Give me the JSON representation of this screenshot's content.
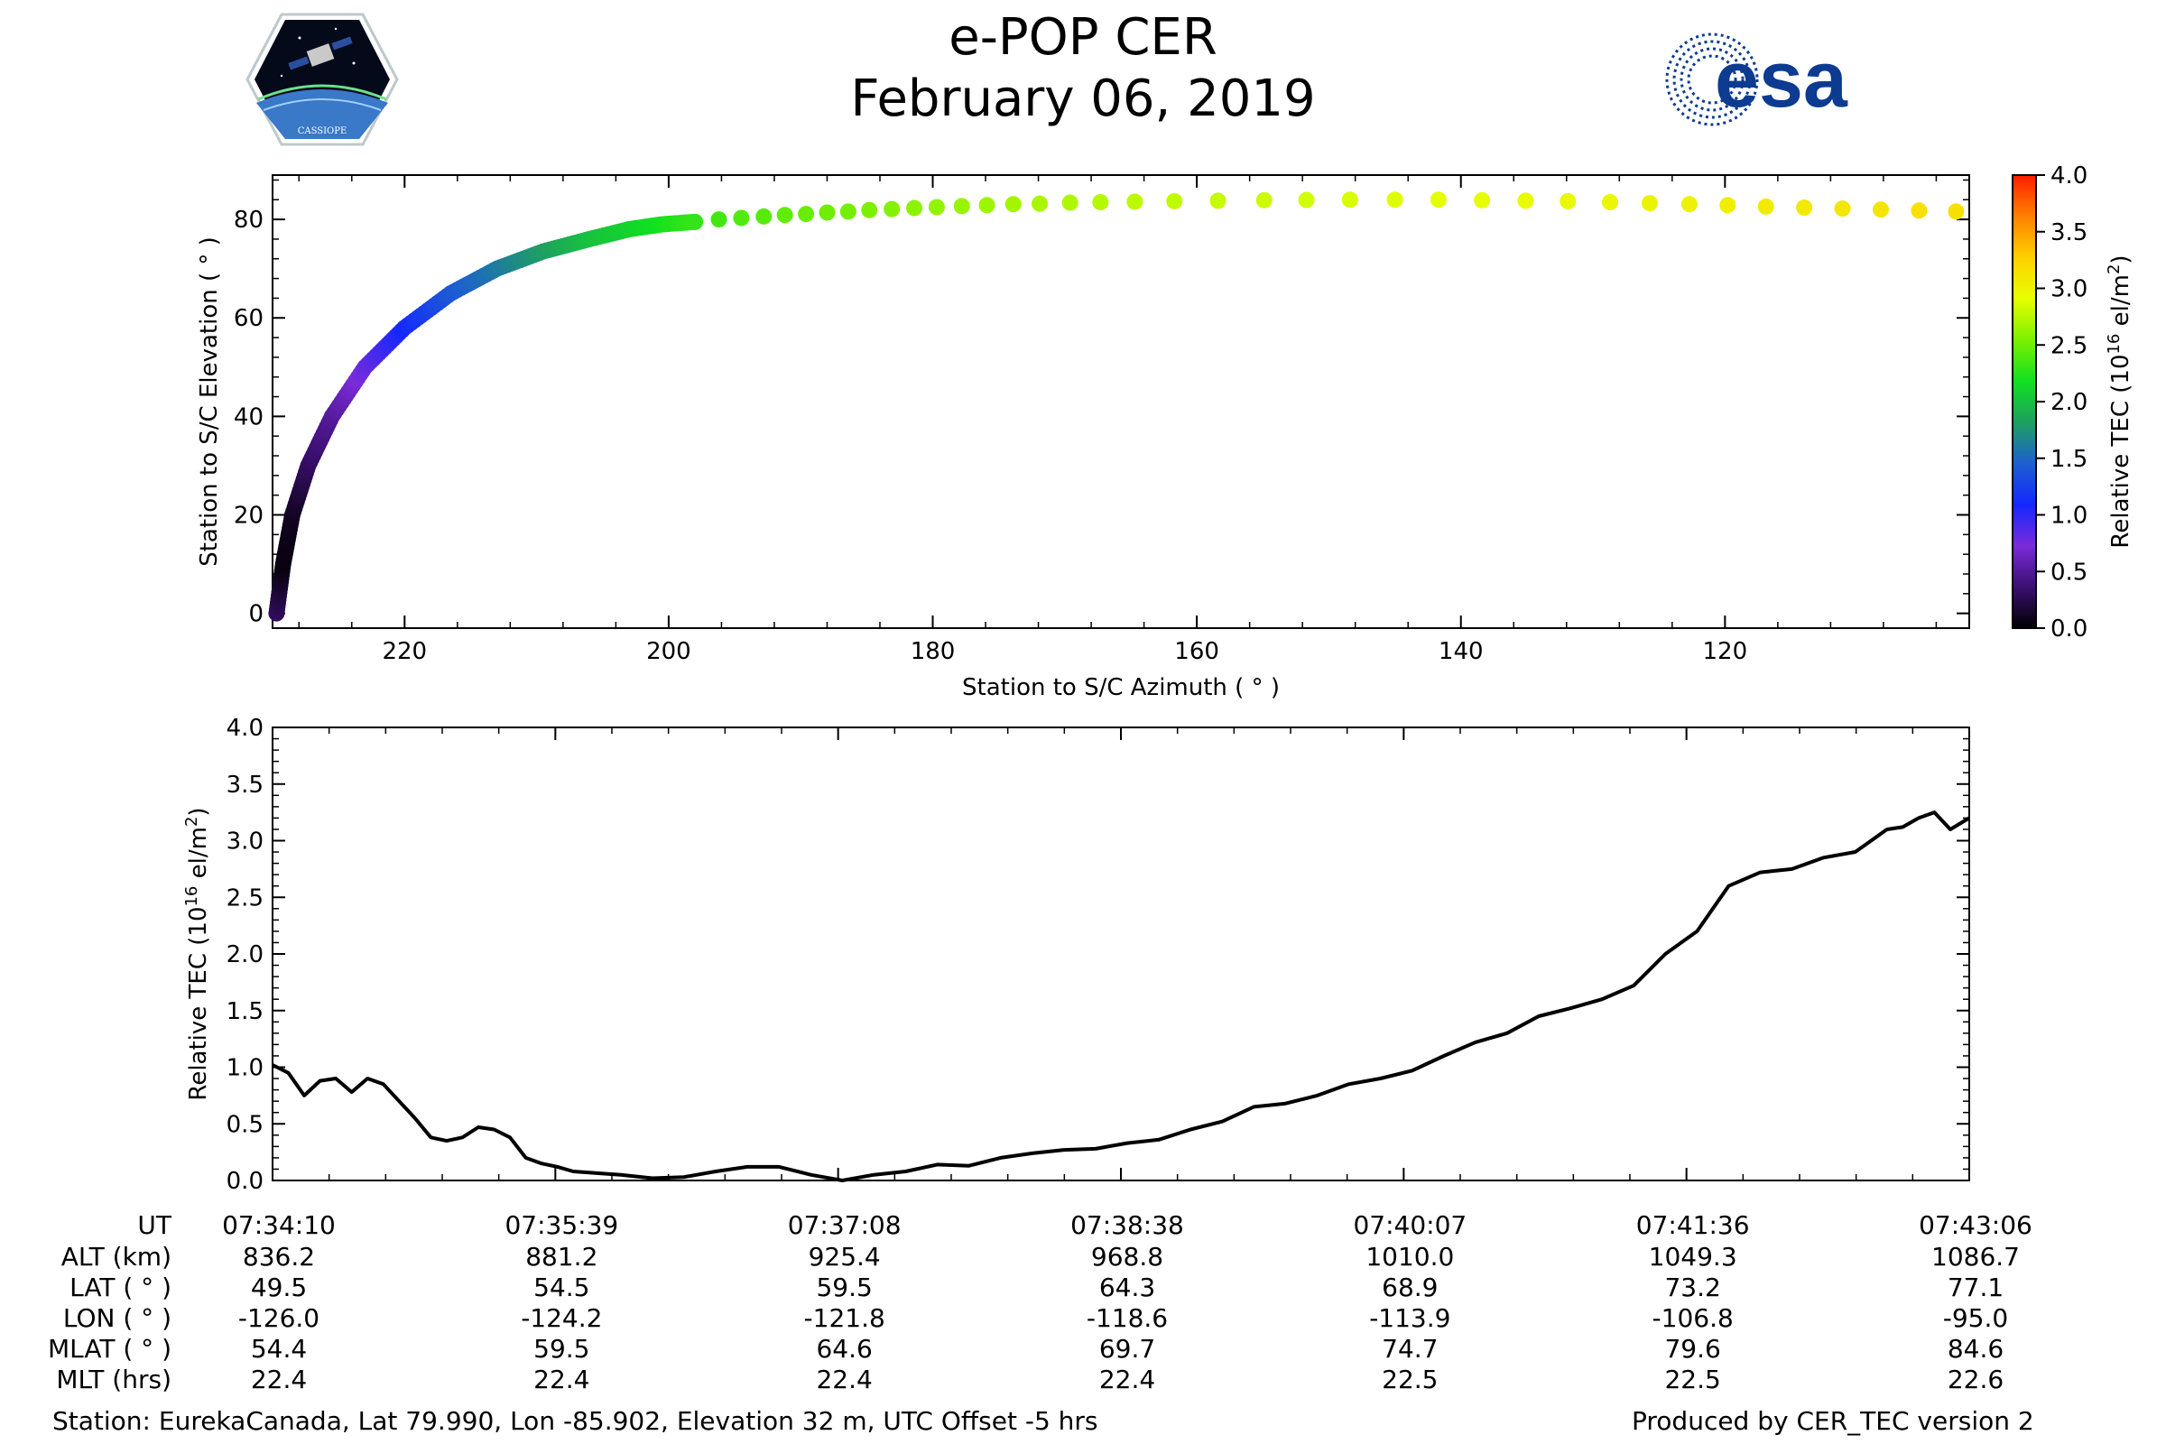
{
  "header": {
    "title": "e-POP CER",
    "date": "February 06, 2019",
    "left_logo_text": "CASSIOPE",
    "right_logo_text": "esa"
  },
  "colorbar": {
    "label": "Relative TEC (10",
    "label_sup": "16",
    "label_unit": " el/m",
    "label_unit_sup": "2",
    "label_close": ")",
    "range": [
      0,
      4
    ],
    "ticks": [
      "0.0",
      "0.5",
      "1.0",
      "1.5",
      "2.0",
      "2.5",
      "3.0",
      "3.5",
      "4.0"
    ],
    "colormap": [
      "#000000",
      "#3b0f70",
      "#7a2bd9",
      "#1428ff",
      "#1e5fd0",
      "#1ea060",
      "#10e020",
      "#7cf000",
      "#e6ff00",
      "#ffd000",
      "#ff8000",
      "#ff1e00"
    ]
  },
  "chart_data": [
    {
      "type": "scatter",
      "title": "",
      "xlabel": "Station to S/C Azimuth ( ° )",
      "ylabel": "Station to S/C Elevation ( ° )",
      "xlim": [
        230,
        101.5
      ],
      "ylim": [
        -3,
        89
      ],
      "xticks": [
        "220",
        "200",
        "180",
        "160",
        "140",
        "120"
      ],
      "yticks": [
        "0",
        "20",
        "40",
        "60",
        "80"
      ],
      "color_by": "Relative TEC",
      "points_x": [
        229.7,
        229.2,
        228.5,
        227.3,
        225.5,
        223.0,
        220.0,
        216.5,
        213.0,
        209.5,
        206.0,
        203.0,
        200.5,
        198.0,
        196.2,
        194.5,
        192.8,
        191.2,
        189.6,
        188.0,
        186.4,
        184.8,
        183.1,
        181.4,
        179.7,
        177.8,
        175.9,
        173.9,
        171.9,
        169.6,
        167.3,
        164.7,
        161.7,
        158.4,
        154.9,
        151.7,
        148.4,
        145.0,
        141.7,
        138.4,
        135.1,
        131.9,
        128.7,
        125.7,
        122.7,
        119.8,
        116.9,
        114.0,
        111.1,
        108.2,
        105.3,
        102.5
      ],
      "points_y": [
        0,
        10,
        20,
        30,
        40,
        50,
        58,
        65,
        70,
        73.5,
        76,
        78,
        79,
        79.5,
        80,
        80.3,
        80.6,
        80.9,
        81.1,
        81.4,
        81.6,
        81.9,
        82.1,
        82.3,
        82.5,
        82.7,
        82.9,
        83.1,
        83.2,
        83.4,
        83.5,
        83.6,
        83.7,
        83.8,
        83.9,
        83.95,
        84.0,
        84.0,
        84.0,
        83.9,
        83.8,
        83.7,
        83.5,
        83.3,
        83.1,
        82.9,
        82.6,
        82.4,
        82.2,
        82.0,
        81.8,
        81.6
      ],
      "points_c": [
        0.3,
        0.05,
        0.1,
        0.3,
        0.5,
        0.8,
        1.1,
        1.4,
        1.6,
        1.8,
        2.0,
        2.1,
        2.2,
        2.3,
        2.35,
        2.4,
        2.42,
        2.45,
        2.48,
        2.5,
        2.52,
        2.55,
        2.57,
        2.6,
        2.62,
        2.64,
        2.66,
        2.68,
        2.7,
        2.72,
        2.74,
        2.76,
        2.78,
        2.8,
        2.82,
        2.84,
        2.86,
        2.88,
        2.9,
        2.92,
        2.94,
        2.96,
        2.98,
        3.0,
        3.02,
        3.04,
        3.06,
        3.08,
        3.1,
        3.12,
        3.14,
        3.16
      ]
    },
    {
      "type": "line",
      "title": "",
      "xlabel": "",
      "ylabel": "Relative TEC (10¹⁶ el/m²)",
      "xlim": [
        0,
        536
      ],
      "ylim": [
        0,
        4
      ],
      "yticks": [
        "0.0",
        "0.5",
        "1.0",
        "1.5",
        "2.0",
        "2.5",
        "3.0",
        "3.5",
        "4.0"
      ],
      "x_seconds": [
        0,
        5,
        10,
        15,
        20,
        25,
        30,
        35,
        40,
        45,
        50,
        55,
        60,
        65,
        70,
        75,
        80,
        85,
        90,
        95,
        100,
        110,
        120,
        130,
        140,
        150,
        160,
        170,
        180,
        190,
        200,
        210,
        220,
        230,
        240,
        250,
        260,
        270,
        280,
        290,
        300,
        310,
        320,
        330,
        340,
        350,
        360,
        370,
        380,
        390,
        400,
        410,
        420,
        430,
        440,
        450,
        460,
        470,
        480,
        490,
        500,
        505,
        510,
        515,
        520,
        525,
        530,
        536
      ],
      "y": [
        1.02,
        0.95,
        0.75,
        0.88,
        0.9,
        0.78,
        0.9,
        0.85,
        0.7,
        0.55,
        0.38,
        0.35,
        0.38,
        0.47,
        0.45,
        0.38,
        0.2,
        0.15,
        0.12,
        0.08,
        0.07,
        0.05,
        0.02,
        0.03,
        0.08,
        0.12,
        0.12,
        0.05,
        0.0,
        0.05,
        0.08,
        0.14,
        0.13,
        0.2,
        0.24,
        0.27,
        0.28,
        0.33,
        0.36,
        0.45,
        0.52,
        0.65,
        0.68,
        0.75,
        0.85,
        0.9,
        0.97,
        1.1,
        1.22,
        1.3,
        1.45,
        1.52,
        1.6,
        1.72,
        2.0,
        2.2,
        2.6,
        2.72,
        2.75,
        2.85,
        2.9,
        3.0,
        3.1,
        3.12,
        3.2,
        3.25,
        3.1,
        3.2
      ]
    }
  ],
  "table": {
    "row_labels": [
      "UT",
      "ALT (km)",
      "LAT ( ° )",
      "LON ( ° )",
      "MLAT ( ° )",
      "MLT (hrs)"
    ],
    "columns": [
      [
        "07:34:10",
        "836.2",
        "49.5",
        "-126.0",
        "54.4",
        "22.4"
      ],
      [
        "07:35:39",
        "881.2",
        "54.5",
        "-124.2",
        "59.5",
        "22.4"
      ],
      [
        "07:37:08",
        "925.4",
        "59.5",
        "-121.8",
        "64.6",
        "22.4"
      ],
      [
        "07:38:38",
        "968.8",
        "64.3",
        "-118.6",
        "69.7",
        "22.4"
      ],
      [
        "07:40:07",
        "1010.0",
        "68.9",
        "-113.9",
        "74.7",
        "22.5"
      ],
      [
        "07:41:36",
        "1049.3",
        "73.2",
        "-106.8",
        "79.6",
        "22.5"
      ],
      [
        "07:43:06",
        "1086.7",
        "77.1",
        "-95.0",
        "84.6",
        "22.6"
      ]
    ]
  },
  "footer": {
    "station": "Station: EurekaCanada, Lat 79.990, Lon -85.902, Elevation 32 m, UTC Offset -5 hrs",
    "produced": "Produced by CER_TEC version 2"
  }
}
